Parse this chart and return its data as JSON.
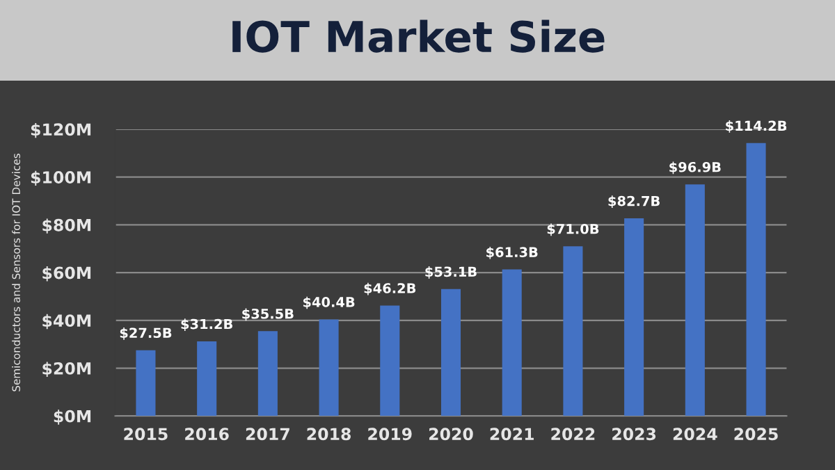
{
  "chart_data": {
    "type": "bar",
    "title": "IOT Market Size",
    "ylabel": "Semiconductors and Sensors for IOT Devices",
    "categories": [
      "2015",
      "2016",
      "2017",
      "2018",
      "2019",
      "2020",
      "2021",
      "2022",
      "2023",
      "2024",
      "2025"
    ],
    "series": [
      {
        "color": "#4472c4",
        "values": [
          27.5,
          31.2,
          35.5,
          40.4,
          46.2,
          53.1,
          61.3,
          71.0,
          82.7,
          96.9,
          114.2
        ],
        "value_labels": [
          "$27.5B",
          "$31.2B",
          "$35.5B",
          "$40.4B",
          "$46.2B",
          "$53.1B",
          "$61.3B",
          "$71.0B",
          "$82.7B",
          "$96.9B",
          "$114.2B"
        ]
      }
    ],
    "ylim": [
      0,
      120
    ],
    "yticks": [
      {
        "value": 0,
        "label": "$0M"
      },
      {
        "value": 20,
        "label": "$20M"
      },
      {
        "value": 40,
        "label": "$40M"
      },
      {
        "value": 60,
        "label": "$60M"
      },
      {
        "value": 80,
        "label": "$80M"
      },
      {
        "value": 100,
        "label": "$100M"
      },
      {
        "value": 120,
        "label": "$120M"
      }
    ],
    "grid": "y"
  }
}
